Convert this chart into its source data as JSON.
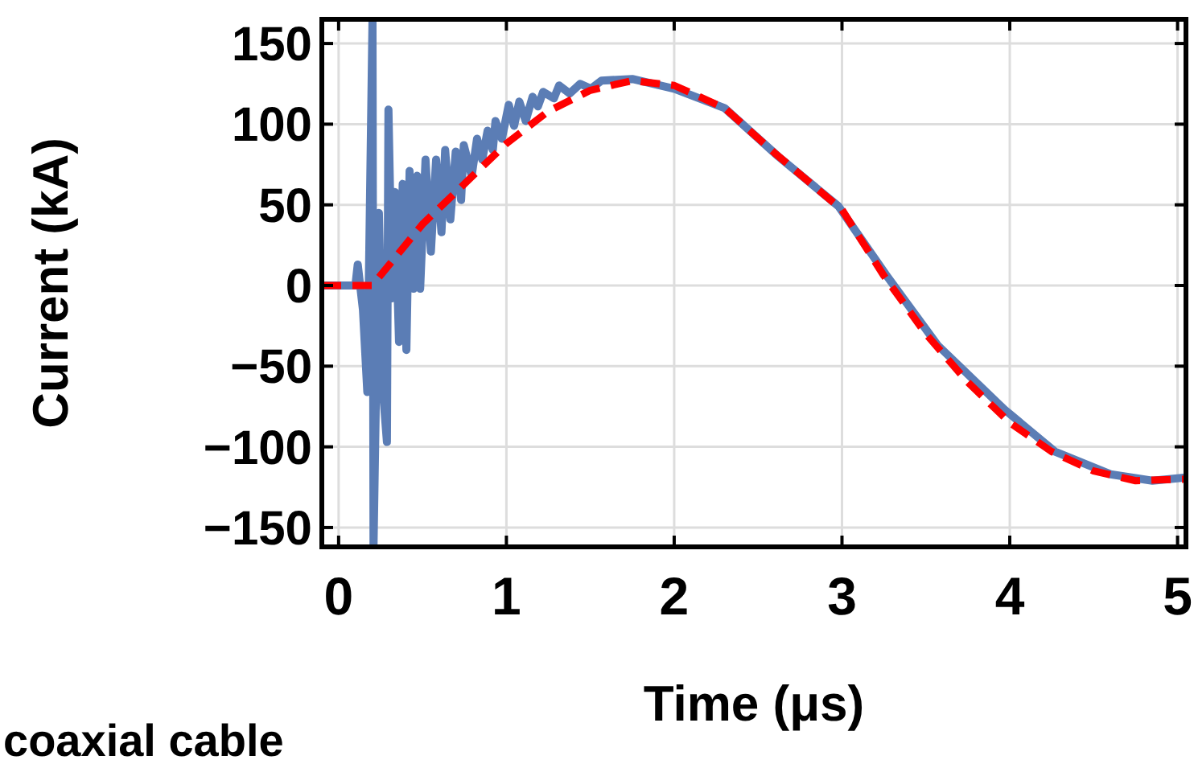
{
  "chart_data": {
    "type": "line",
    "xlabel": "Time (μs)",
    "ylabel": "Current (kA)",
    "xlim": [
      -0.1,
      5.05
    ],
    "ylim": [
      -162,
      165
    ],
    "xticks": [
      0,
      1,
      2,
      3,
      4,
      5
    ],
    "yticks": [
      -150,
      -100,
      -50,
      0,
      50,
      100,
      150
    ],
    "grid": true,
    "marker": "none",
    "annotations": [
      "coaxial cable"
    ],
    "series": [
      {
        "color": "#5b7db5",
        "line_style": "solid",
        "x": [
          -0.1,
          0.1,
          0.114,
          0.145,
          0.171,
          0.202,
          0.208,
          0.24,
          0.265,
          0.288,
          0.297,
          0.319,
          0.335,
          0.36,
          0.382,
          0.404,
          0.423,
          0.446,
          0.468,
          0.486,
          0.518,
          0.55,
          0.581,
          0.613,
          0.635,
          0.666,
          0.698,
          0.73,
          0.746,
          0.793,
          0.825,
          0.856,
          0.888,
          0.919,
          0.935,
          0.973,
          1.014,
          1.046,
          1.077,
          1.115,
          1.156,
          1.188,
          1.219,
          1.283,
          1.314,
          1.377,
          1.44,
          1.504,
          1.567,
          1.75,
          2.0,
          2.3,
          2.62,
          2.98,
          3.26,
          3.57,
          3.97,
          4.27,
          4.6,
          4.85,
          5.05
        ],
        "values": [
          0,
          0,
          13,
          -15,
          -66,
          165,
          -162,
          45,
          -66,
          -97,
          109,
          -8,
          58,
          -35,
          63,
          -40,
          71,
          -2,
          68,
          -2,
          78,
          21,
          78,
          33,
          84,
          41,
          83,
          53,
          87,
          68,
          91,
          78,
          96,
          84,
          102,
          91,
          112,
          99,
          114,
          102,
          117,
          111,
          120,
          116,
          124,
          119,
          125,
          122,
          127,
          128,
          122,
          110,
          80,
          49,
          7,
          -37,
          -77,
          -103,
          -117,
          -121,
          -119
        ]
      },
      {
        "color": "#ff0000",
        "line_style": "dashed",
        "x": [
          -0.1,
          0.2,
          0.5,
          0.8,
          1.0,
          1.25,
          1.5,
          1.75,
          2.0,
          2.3,
          2.6,
          3.0,
          3.25,
          3.5,
          3.75,
          4.0,
          4.25,
          4.5,
          4.75,
          5.05
        ],
        "values": [
          0,
          0,
          38,
          68,
          88,
          108,
          121,
          127,
          124,
          110,
          82,
          47,
          6,
          -30,
          -60,
          -85,
          -103,
          -115,
          -121,
          -120
        ]
      }
    ]
  }
}
